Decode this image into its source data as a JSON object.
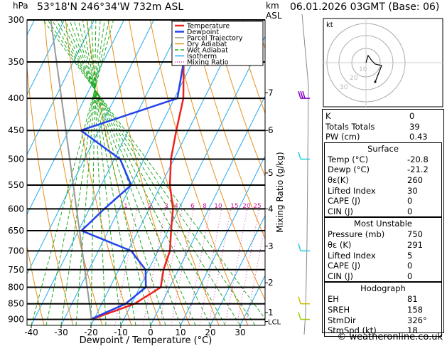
{
  "header": {
    "coords": "53°18'N  246°34'W  732m  ASL",
    "date": "06.01.2026  03GMT  (Base: 06)",
    "hpa_label": "hPa",
    "km_label": "km",
    "asl_label": "ASL"
  },
  "chart_data": {
    "type": "skew-t",
    "title": "53°18'N 246°34'W 732m ASL",
    "xlabel": "Dewpoint / Temperature (°C)",
    "ylabel": "hPa",
    "mixing_ratio_label": "Mixing Ratio (g/kg)",
    "pressure_levels": [
      300,
      350,
      400,
      450,
      500,
      550,
      600,
      650,
      700,
      750,
      800,
      850,
      900
    ],
    "temp_ticks": [
      -40,
      -30,
      -20,
      -10,
      0,
      10,
      20,
      30
    ],
    "km_ticks": [
      {
        "label": "7",
        "p": 392
      },
      {
        "label": "6",
        "p": 450
      },
      {
        "label": "5",
        "p": 526
      },
      {
        "label": "4",
        "p": 600
      },
      {
        "label": "3",
        "p": 688
      },
      {
        "label": "2",
        "p": 787
      },
      {
        "label": "1",
        "p": 878
      },
      {
        "label": "LCL",
        "p": 907
      }
    ],
    "mixing_ratio_values": [
      "1",
      "2",
      "3",
      "4",
      "6",
      "8",
      "10",
      "15",
      "20",
      "25"
    ],
    "legend": [
      "Temperature",
      "Dewpoint",
      "Parcel Trajectory",
      "Dry Adiabat",
      "Wet Adiabat",
      "Isotherm",
      "Mixing Ratio"
    ],
    "series": [
      {
        "name": "Temperature",
        "color": "#ee2222",
        "points": [
          [
            300,
            -40
          ],
          [
            350,
            -33
          ],
          [
            400,
            -27
          ],
          [
            450,
            -24
          ],
          [
            500,
            -21
          ],
          [
            550,
            -17
          ],
          [
            600,
            -12
          ],
          [
            650,
            -9
          ],
          [
            700,
            -6
          ],
          [
            750,
            -5
          ],
          [
            800,
            -3
          ],
          [
            850,
            -9
          ],
          [
            900,
            -20.8
          ]
        ]
      },
      {
        "name": "Dewpoint",
        "color": "#2244ee",
        "points": [
          [
            300,
            -40
          ],
          [
            350,
            -33
          ],
          [
            400,
            -29
          ],
          [
            450,
            -56
          ],
          [
            500,
            -38
          ],
          [
            550,
            -30
          ],
          [
            600,
            -35
          ],
          [
            650,
            -39
          ],
          [
            700,
            -19
          ],
          [
            750,
            -11
          ],
          [
            800,
            -8
          ],
          [
            850,
            -12
          ],
          [
            900,
            -21.2
          ]
        ]
      }
    ],
    "wind_barbs_pressure": [
      400,
      500,
      700,
      850,
      900
    ]
  },
  "hodograph": {
    "unit": "kt",
    "ring_labels": [
      "10",
      "20",
      "30"
    ]
  },
  "indices": {
    "rows": [
      {
        "label": "K",
        "value": "0"
      },
      {
        "label": "Totals Totals",
        "value": "39"
      },
      {
        "label": "PW (cm)",
        "value": "0.43"
      }
    ]
  },
  "surface": {
    "title": "Surface",
    "rows": [
      {
        "label": "Temp (°C)",
        "value": "-20.8"
      },
      {
        "label": "Dewp (°C)",
        "value": "-21.2"
      },
      {
        "label": "θε(K)",
        "value": "260"
      },
      {
        "label": "Lifted Index",
        "value": "30"
      },
      {
        "label": "CAPE (J)",
        "value": "0"
      },
      {
        "label": "CIN (J)",
        "value": "0"
      }
    ]
  },
  "most_unstable": {
    "title": "Most Unstable",
    "rows": [
      {
        "label": "Pressure (mb)",
        "value": "750"
      },
      {
        "label": "θε (K)",
        "value": "291"
      },
      {
        "label": "Lifted Index",
        "value": "5"
      },
      {
        "label": "CAPE (J)",
        "value": "0"
      },
      {
        "label": "CIN (J)",
        "value": "0"
      }
    ]
  },
  "hodograph_panel": {
    "title": "Hodograph",
    "rows": [
      {
        "label": "EH",
        "value": "81"
      },
      {
        "label": "SREH",
        "value": "158"
      },
      {
        "label": "StmDir",
        "value": "326°"
      },
      {
        "label": "StmSpd (kt)",
        "value": "18"
      }
    ]
  },
  "footer": "© weatheronline.co.uk"
}
